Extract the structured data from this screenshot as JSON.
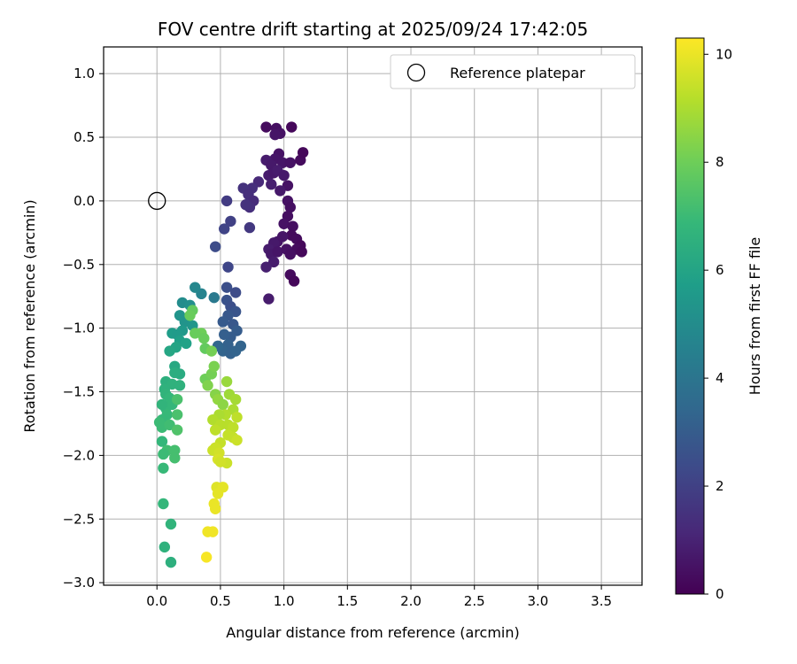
{
  "chart_data": {
    "type": "scatter",
    "title": "FOV centre drift starting at 2025/09/24 17:42:05",
    "xlabel": "Angular distance from reference (arcmin)",
    "ylabel": "Rotation from reference (arcmin)",
    "xlim": [
      -0.42,
      3.82
    ],
    "ylim": [
      -3.02,
      1.21
    ],
    "grid": true,
    "xticks": [
      "0.0",
      "0.5",
      "1.0",
      "1.5",
      "2.0",
      "2.5",
      "3.0",
      "3.5"
    ],
    "yticks": [
      "1.0",
      "0.5",
      "0.0",
      "−0.5",
      "−1.0",
      "−1.5",
      "−2.0",
      "−2.5",
      "−3.0"
    ],
    "legend": {
      "position": "top-right",
      "entries": [
        "Reference platepar"
      ]
    },
    "reference_point": {
      "x": 0.0,
      "y": 0.0
    },
    "colorbar": {
      "label": "Hours from first FF file",
      "range": [
        0,
        10.3
      ],
      "ticks": [
        "0",
        "2",
        "4",
        "6",
        "8",
        "10"
      ],
      "colormap": [
        "#440154",
        "#482878",
        "#3e4989",
        "#31688e",
        "#26828e",
        "#1f9e89",
        "#35b779",
        "#6ece58",
        "#b5de2b",
        "#fde725"
      ]
    },
    "series": [
      {
        "name": "FF files",
        "points": [
          [
            0.86,
            0.58,
            0.3
          ],
          [
            0.94,
            0.57,
            0.4
          ],
          [
            1.06,
            0.58,
            0.2
          ],
          [
            0.97,
            0.53,
            0.5
          ],
          [
            0.93,
            0.52,
            0.6
          ],
          [
            0.96,
            0.37,
            0.5
          ],
          [
            0.93,
            0.33,
            0.6
          ],
          [
            0.86,
            0.32,
            0.8
          ],
          [
            0.9,
            0.28,
            0.7
          ],
          [
            0.99,
            0.3,
            0.6
          ],
          [
            1.05,
            0.3,
            0.5
          ],
          [
            1.13,
            0.32,
            0.3
          ],
          [
            1.15,
            0.38,
            0.2
          ],
          [
            0.88,
            0.2,
            0.8
          ],
          [
            0.92,
            0.22,
            0.7
          ],
          [
            0.95,
            0.24,
            0.8
          ],
          [
            1.0,
            0.2,
            0.7
          ],
          [
            1.03,
            0.12,
            0.5
          ],
          [
            0.9,
            0.13,
            0.9
          ],
          [
            0.97,
            0.08,
            0.7
          ],
          [
            1.03,
            0.0,
            0.5
          ],
          [
            1.05,
            -0.05,
            0.4
          ],
          [
            1.03,
            -0.12,
            0.4
          ],
          [
            1.0,
            -0.18,
            0.5
          ],
          [
            1.07,
            -0.2,
            0.4
          ],
          [
            1.06,
            -0.27,
            0.3
          ],
          [
            1.1,
            -0.3,
            0.3
          ],
          [
            1.13,
            -0.35,
            0.2
          ],
          [
            1.1,
            -0.38,
            0.3
          ],
          [
            1.14,
            -0.4,
            0.2
          ],
          [
            0.99,
            -0.28,
            0.6
          ],
          [
            0.95,
            -0.32,
            0.6
          ],
          [
            0.92,
            -0.33,
            0.7
          ],
          [
            0.88,
            -0.38,
            0.8
          ],
          [
            0.9,
            -0.42,
            0.7
          ],
          [
            0.95,
            -0.4,
            0.6
          ],
          [
            1.02,
            -0.38,
            0.5
          ],
          [
            1.05,
            -0.42,
            0.4
          ],
          [
            0.92,
            -0.48,
            0.8
          ],
          [
            0.86,
            -0.52,
            0.9
          ],
          [
            1.05,
            -0.58,
            0.3
          ],
          [
            1.08,
            -0.63,
            0.2
          ],
          [
            0.88,
            -0.77,
            0.8
          ],
          [
            0.8,
            0.15,
            1.2
          ],
          [
            0.75,
            0.1,
            1.4
          ],
          [
            0.68,
            0.1,
            1.5
          ],
          [
            0.72,
            0.05,
            1.4
          ],
          [
            0.76,
            0.0,
            1.3
          ],
          [
            0.73,
            -0.05,
            1.4
          ],
          [
            0.7,
            -0.03,
            1.5
          ],
          [
            0.55,
            0.0,
            1.8
          ],
          [
            0.58,
            -0.16,
            2.0
          ],
          [
            0.53,
            -0.22,
            2.1
          ],
          [
            0.73,
            -0.21,
            1.7
          ],
          [
            0.46,
            -0.36,
            2.4
          ],
          [
            0.56,
            -0.52,
            2.2
          ],
          [
            0.55,
            -0.68,
            2.5
          ],
          [
            0.62,
            -0.72,
            2.4
          ],
          [
            0.55,
            -0.78,
            2.6
          ],
          [
            0.58,
            -0.83,
            2.5
          ],
          [
            0.62,
            -0.87,
            2.7
          ],
          [
            0.56,
            -0.9,
            2.8
          ],
          [
            0.52,
            -0.95,
            2.9
          ],
          [
            0.6,
            -0.97,
            2.8
          ],
          [
            0.63,
            -1.02,
            3.0
          ],
          [
            0.58,
            -1.07,
            3.0
          ],
          [
            0.53,
            -1.05,
            3.1
          ],
          [
            0.56,
            -1.13,
            3.2
          ],
          [
            0.52,
            -1.18,
            3.3
          ],
          [
            0.58,
            -1.2,
            3.2
          ],
          [
            0.62,
            -1.18,
            3.3
          ],
          [
            0.66,
            -1.14,
            3.3
          ],
          [
            0.48,
            -1.14,
            3.4
          ],
          [
            0.45,
            -0.76,
            4.2
          ],
          [
            0.35,
            -0.73,
            4.6
          ],
          [
            0.3,
            -0.68,
            4.8
          ],
          [
            0.2,
            -0.8,
            5.0
          ],
          [
            0.26,
            -0.82,
            5.1
          ],
          [
            0.18,
            -0.9,
            5.3
          ],
          [
            0.22,
            -0.95,
            5.3
          ],
          [
            0.28,
            -0.98,
            5.4
          ],
          [
            0.2,
            -1.02,
            5.5
          ],
          [
            0.12,
            -1.04,
            5.7
          ],
          [
            0.16,
            -1.05,
            5.6
          ],
          [
            0.18,
            -1.1,
            5.8
          ],
          [
            0.23,
            -1.12,
            5.9
          ],
          [
            0.15,
            -1.15,
            6.0
          ],
          [
            0.1,
            -1.18,
            6.1
          ],
          [
            0.14,
            -1.3,
            6.2
          ],
          [
            0.18,
            -1.36,
            6.3
          ],
          [
            0.14,
            -1.35,
            6.4
          ],
          [
            0.07,
            -1.42,
            6.5
          ],
          [
            0.12,
            -1.44,
            6.6
          ],
          [
            0.18,
            -1.45,
            6.6
          ],
          [
            0.06,
            -1.48,
            6.6
          ],
          [
            0.07,
            -1.52,
            6.7
          ],
          [
            0.1,
            -1.55,
            6.8
          ],
          [
            0.12,
            -1.6,
            6.8
          ],
          [
            0.07,
            -1.63,
            6.8
          ],
          [
            0.04,
            -1.6,
            6.7
          ],
          [
            0.08,
            -1.68,
            6.9
          ],
          [
            0.04,
            -1.72,
            6.9
          ],
          [
            0.02,
            -1.74,
            7.0
          ],
          [
            0.04,
            -1.78,
            7.0
          ],
          [
            0.1,
            -1.76,
            7.1
          ],
          [
            0.04,
            -1.89,
            6.8
          ],
          [
            0.08,
            -1.96,
            7.1
          ],
          [
            0.05,
            -1.99,
            7.0
          ],
          [
            0.14,
            -1.96,
            7.2
          ],
          [
            0.14,
            -2.02,
            7.2
          ],
          [
            0.05,
            -2.1,
            6.9
          ],
          [
            0.05,
            -2.38,
            6.8
          ],
          [
            0.11,
            -2.54,
            6.7
          ],
          [
            0.06,
            -2.72,
            6.6
          ],
          [
            0.11,
            -2.84,
            6.5
          ],
          [
            0.16,
            -1.56,
            7.3
          ],
          [
            0.16,
            -1.68,
            7.3
          ],
          [
            0.16,
            -1.8,
            7.4
          ],
          [
            0.28,
            -0.86,
            7.8
          ],
          [
            0.26,
            -0.9,
            7.9
          ],
          [
            0.35,
            -1.04,
            8.0
          ],
          [
            0.3,
            -1.04,
            7.9
          ],
          [
            0.37,
            -1.08,
            7.9
          ],
          [
            0.38,
            -1.16,
            7.8
          ],
          [
            0.43,
            -1.18,
            8.1
          ],
          [
            0.38,
            -1.4,
            8.0
          ],
          [
            0.43,
            -1.36,
            8.1
          ],
          [
            0.4,
            -1.45,
            8.3
          ],
          [
            0.45,
            -1.3,
            8.2
          ],
          [
            0.46,
            -1.52,
            8.4
          ],
          [
            0.48,
            -1.56,
            8.6
          ],
          [
            0.52,
            -1.6,
            8.5
          ],
          [
            0.55,
            -1.42,
            8.7
          ],
          [
            0.57,
            -1.52,
            8.8
          ],
          [
            0.62,
            -1.56,
            8.9
          ],
          [
            0.6,
            -1.64,
            9.0
          ],
          [
            0.54,
            -1.68,
            9.1
          ],
          [
            0.49,
            -1.68,
            9.0
          ],
          [
            0.44,
            -1.72,
            9.1
          ],
          [
            0.5,
            -1.76,
            9.2
          ],
          [
            0.56,
            -1.76,
            9.2
          ],
          [
            0.63,
            -1.7,
            9.3
          ],
          [
            0.6,
            -1.78,
            9.3
          ],
          [
            0.46,
            -1.8,
            9.3
          ],
          [
            0.56,
            -1.84,
            9.4
          ],
          [
            0.6,
            -1.86,
            9.4
          ],
          [
            0.63,
            -1.88,
            9.5
          ],
          [
            0.5,
            -1.9,
            9.4
          ],
          [
            0.46,
            -1.94,
            9.5
          ],
          [
            0.44,
            -1.96,
            9.5
          ],
          [
            0.49,
            -1.98,
            9.6
          ],
          [
            0.48,
            -2.03,
            9.7
          ],
          [
            0.55,
            -2.06,
            9.5
          ],
          [
            0.5,
            -2.05,
            9.6
          ],
          [
            0.47,
            -2.25,
            9.8
          ],
          [
            0.52,
            -2.25,
            9.9
          ],
          [
            0.48,
            -2.3,
            9.9
          ],
          [
            0.45,
            -2.38,
            10.0
          ],
          [
            0.46,
            -2.42,
            10.0
          ],
          [
            0.4,
            -2.6,
            10.1
          ],
          [
            0.44,
            -2.6,
            10.1
          ],
          [
            0.39,
            -2.8,
            10.2
          ]
        ]
      }
    ]
  }
}
